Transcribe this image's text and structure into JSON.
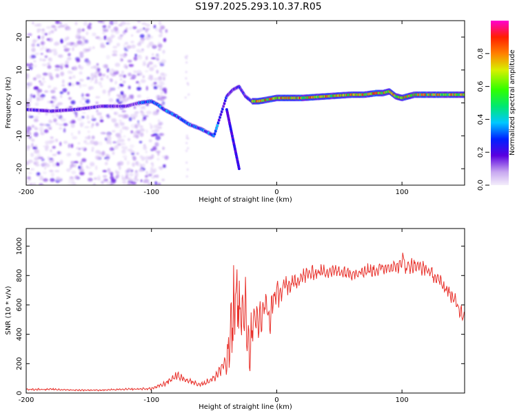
{
  "title": "S197.2025.293.10.37.R05",
  "colors": {
    "trace": "#e8302a",
    "axis": "#000000"
  },
  "chart_data": [
    {
      "type": "heatmap",
      "title": "S197.2025.293.10.37.R05",
      "xlabel": "Height of straight line (km)",
      "ylabel": "Frequency (Hz)",
      "xlim": [
        -200,
        150
      ],
      "ylim": [
        -25,
        25
      ],
      "xticks": [
        -200,
        -100,
        0,
        100
      ],
      "yticks": [
        -20,
        -10,
        0,
        10,
        20
      ],
      "ridge": {
        "x": [
          -200,
          -180,
          -160,
          -140,
          -120,
          -110,
          -100,
          -95,
          -90,
          -80,
          -70,
          -60,
          -55,
          -50,
          -45,
          -40,
          -35,
          -30,
          -25,
          -20,
          -15,
          -10,
          0,
          20,
          40,
          60,
          70,
          80,
          85,
          90,
          95,
          100,
          110,
          120,
          130,
          150
        ],
        "freq": [
          -2,
          -2.5,
          -2,
          -1,
          -1,
          0,
          0.5,
          -0.5,
          -2,
          -4,
          -6.5,
          -8,
          -9,
          -10,
          -4,
          2,
          4,
          5,
          2,
          0.5,
          0.5,
          0.8,
          1.5,
          1.5,
          2,
          2.5,
          2.5,
          3,
          3,
          3.5,
          2,
          1.5,
          2.5,
          2.5,
          2.5,
          2.5
        ]
      },
      "colorbar": {
        "label": "Normalized spectral amplitude",
        "ticks": [
          "0.0",
          "0.2",
          "0.4",
          "0.6",
          "0.8"
        ]
      }
    },
    {
      "type": "line",
      "xlabel": "Height of straight line (km)",
      "ylabel": "SNR (10 * v/v)",
      "xlim": [
        -200,
        150
      ],
      "ylim": [
        0,
        1120
      ],
      "xticks": [
        -200,
        -100,
        0,
        100
      ],
      "yticks": [
        0,
        200,
        400,
        600,
        800,
        1000
      ],
      "series": [
        {
          "name": "SNR",
          "x": [
            -200,
            -180,
            -160,
            -140,
            -120,
            -100,
            -90,
            -85,
            -80,
            -75,
            -70,
            -65,
            -60,
            -50,
            -45,
            -40,
            -35,
            -33,
            -30,
            -28,
            -25,
            -22,
            -20,
            -18,
            -15,
            -12,
            -10,
            -8,
            -5,
            -3,
            0,
            3,
            5,
            8,
            10,
            15,
            20,
            25,
            30,
            40,
            50,
            60,
            70,
            80,
            90,
            95,
            100,
            102,
            103,
            104,
            106,
            110,
            120,
            130,
            140,
            145,
            150
          ],
          "y": [
            25,
            25,
            20,
            20,
            25,
            30,
            60,
            90,
            120,
            100,
            80,
            70,
            60,
            100,
            160,
            200,
            480,
            700,
            600,
            500,
            560,
            300,
            400,
            450,
            480,
            520,
            600,
            560,
            500,
            640,
            700,
            650,
            720,
            740,
            720,
            760,
            790,
            810,
            820,
            830,
            830,
            820,
            830,
            840,
            860,
            860,
            870,
            1000,
            760,
            880,
            870,
            870,
            840,
            760,
            660,
            580,
            520
          ],
          "noise_amplitude": [
            8,
            8,
            6,
            6,
            8,
            10,
            20,
            25,
            30,
            25,
            25,
            25,
            20,
            30,
            60,
            100,
            380,
            300,
            280,
            260,
            250,
            200,
            220,
            200,
            180,
            170,
            160,
            150,
            130,
            120,
            110,
            100,
            90,
            80,
            70,
            65,
            60,
            60,
            55,
            55,
            55,
            55,
            55,
            55,
            50,
            50,
            60,
            120,
            80,
            70,
            60,
            55,
            55,
            55,
            60,
            60,
            60
          ]
        }
      ]
    }
  ]
}
